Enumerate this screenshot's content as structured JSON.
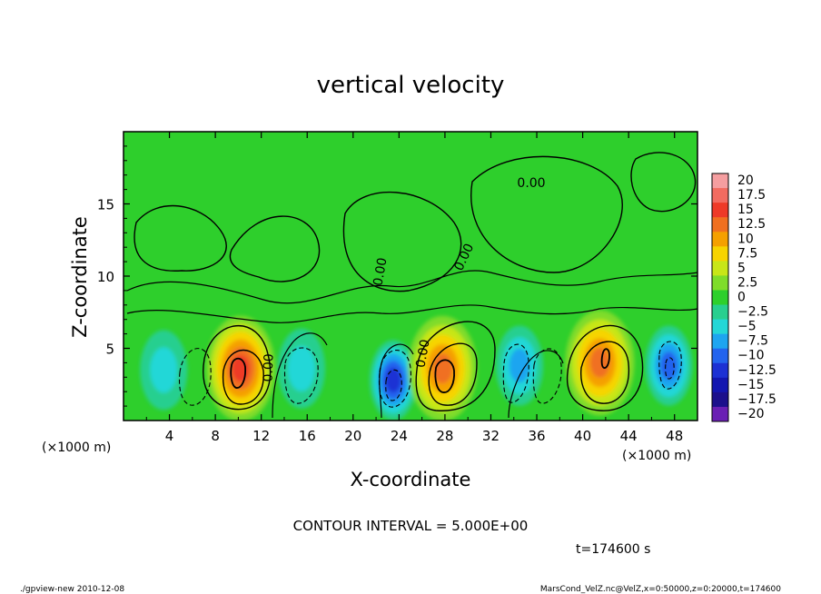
{
  "chart_data": {
    "type": "heatmap",
    "title": "vertical velocity",
    "xlabel": "X-coordinate",
    "ylabel": "Z-coordinate",
    "x_unit": "(×1000 m)",
    "y_unit": "(×1000 m)",
    "xlim": [
      0,
      50
    ],
    "ylim": [
      0,
      20
    ],
    "x_ticks": [
      "4",
      "8",
      "12",
      "16",
      "20",
      "24",
      "28",
      "32",
      "36",
      "40",
      "44",
      "48"
    ],
    "y_ticks": [
      "5",
      "10",
      "15"
    ],
    "contour_labels": [
      "0.00",
      "0.00",
      "0.00",
      "0.00",
      "0.00"
    ],
    "colorbar_labels": [
      "20",
      "17.5",
      "15",
      "12.5",
      "10",
      "7.5",
      "5",
      "2.5",
      "0",
      "−2.5",
      "−5",
      "−7.5",
      "−10",
      "−12.5",
      "−15",
      "−17.5",
      "−20"
    ],
    "colorbar_colors": [
      "#f59ea0",
      "#f26b60",
      "#ee3a28",
      "#f07020",
      "#f5a000",
      "#f7d400",
      "#c8e618",
      "#7fdc2a",
      "#2ed02c",
      "#28cf8f",
      "#24d7d7",
      "#1ea5f0",
      "#2364ee",
      "#1d31d4",
      "#1316b0",
      "#1c108c",
      "#6a1fb4"
    ],
    "cells": [
      {
        "x": 3.5,
        "z": 3.5,
        "w": -6
      },
      {
        "x": 10.2,
        "z": 3.6,
        "w": 14
      },
      {
        "x": 15.5,
        "z": 3.6,
        "w": -6
      },
      {
        "x": 23.5,
        "z": 2.8,
        "w": -13
      },
      {
        "x": 27.8,
        "z": 3.6,
        "w": 13
      },
      {
        "x": 34.5,
        "z": 3.8,
        "w": -7
      },
      {
        "x": 41.5,
        "z": 4.0,
        "w": 12
      },
      {
        "x": 47.5,
        "z": 3.8,
        "w": -9
      }
    ],
    "contour_interval": "CONTOUR INTERVAL = 5.000E+00",
    "time": "t=174600 s"
  },
  "footer": {
    "left": "./gpview-new 2010-12-08",
    "right": "MarsCond_VelZ.nc@VelZ,x=0:50000,z=0:20000,t=174600"
  }
}
